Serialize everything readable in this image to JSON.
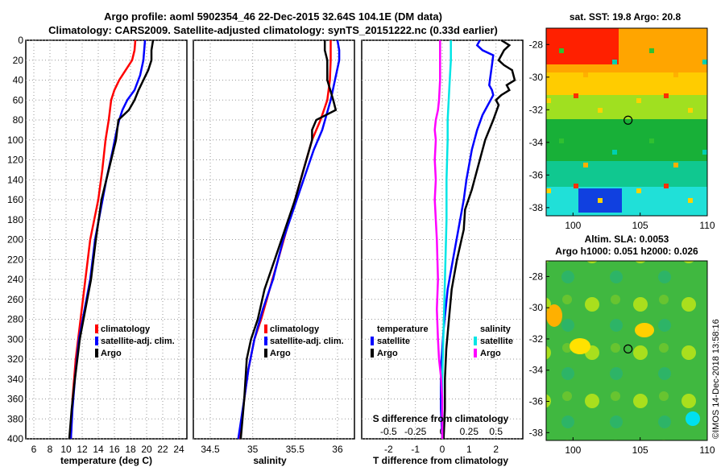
{
  "title_line1": "Argo profile: aoml 5902354_46 22-Dec-2015 32.64S 104.1E (DM data)",
  "title_line2": "Climatology: CARS2009. Satellite-adjusted climatology: synTS_20151222.nc (0.33d earlier)",
  "credit": "©IMOS 14-Dec-2018 13:58:16",
  "colors": {
    "climatology": "#ff0000",
    "satellite": "#0000ff",
    "argo": "#000000",
    "sat_salinity": "#00e5e5",
    "argo_salinity": "#ff00ff"
  },
  "chart_data": [
    {
      "type": "line",
      "id": "temperature",
      "xlabel": "temperature (deg C)",
      "ylabel": "depth (dbar)",
      "xlim": [
        5,
        25
      ],
      "ylim": [
        400,
        0
      ],
      "xticks": [
        6,
        8,
        10,
        12,
        14,
        16,
        18,
        20,
        22,
        24
      ],
      "yticks": [
        0,
        20,
        40,
        60,
        80,
        100,
        120,
        140,
        160,
        180,
        200,
        220,
        240,
        260,
        280,
        300,
        320,
        340,
        360,
        380,
        400
      ],
      "grid": true,
      "legend": [
        "climatology",
        "satellite-adj. clim.",
        "Argo"
      ],
      "series": [
        {
          "name": "climatology",
          "color": "#ff0000",
          "points": [
            [
              18.6,
              0
            ],
            [
              18.5,
              10
            ],
            [
              18.2,
              20
            ],
            [
              17.4,
              30
            ],
            [
              16.6,
              40
            ],
            [
              16.0,
              50
            ],
            [
              15.6,
              60
            ],
            [
              15.3,
              80
            ],
            [
              14.9,
              100
            ],
            [
              14.5,
              130
            ],
            [
              14.0,
              160
            ],
            [
              13.5,
              180
            ],
            [
              13.0,
              200
            ],
            [
              12.4,
              240
            ],
            [
              11.8,
              280
            ],
            [
              11.2,
              320
            ],
            [
              10.8,
              360
            ],
            [
              10.6,
              400
            ]
          ]
        },
        {
          "name": "satellite-adj. clim.",
          "color": "#0000ff",
          "points": [
            [
              19.8,
              0
            ],
            [
              19.7,
              10
            ],
            [
              19.6,
              20
            ],
            [
              19.2,
              35
            ],
            [
              18.5,
              50
            ],
            [
              17.6,
              60
            ],
            [
              17.0,
              70
            ],
            [
              16.6,
              80
            ],
            [
              16.3,
              90
            ],
            [
              15.8,
              110
            ],
            [
              15.0,
              140
            ],
            [
              14.3,
              170
            ],
            [
              13.6,
              200
            ],
            [
              13.0,
              240
            ],
            [
              12.3,
              270
            ],
            [
              11.6,
              300
            ],
            [
              11.1,
              340
            ],
            [
              10.8,
              370
            ],
            [
              10.6,
              400
            ]
          ]
        },
        {
          "name": "Argo",
          "color": "#000000",
          "points": [
            [
              20.8,
              0
            ],
            [
              20.6,
              10
            ],
            [
              20.6,
              20
            ],
            [
              20.2,
              30
            ],
            [
              19.6,
              40
            ],
            [
              19.0,
              50
            ],
            [
              18.5,
              60
            ],
            [
              17.8,
              70
            ],
            [
              16.5,
              80
            ],
            [
              16.2,
              100
            ],
            [
              15.3,
              130
            ],
            [
              14.4,
              160
            ],
            [
              13.7,
              200
            ],
            [
              13.1,
              240
            ],
            [
              12.4,
              270
            ],
            [
              11.7,
              300
            ],
            [
              11.1,
              340
            ],
            [
              10.7,
              370
            ],
            [
              10.4,
              400
            ]
          ]
        }
      ]
    },
    {
      "type": "line",
      "id": "salinity",
      "xlabel": "salinity",
      "ylabel": "depth (dbar)",
      "xlim": [
        34.3,
        36.2
      ],
      "ylim": [
        400,
        0
      ],
      "xticks": [
        34.5,
        35,
        35.5,
        36
      ],
      "xtick_labels": [
        "34.5",
        "35",
        "35.5",
        "36"
      ],
      "grid": true,
      "legend": [
        "climatology",
        "satellite-adj. clim.",
        "Argo"
      ],
      "series": [
        {
          "name": "climatology",
          "color": "#ff0000",
          "points": [
            [
              35.92,
              0
            ],
            [
              35.92,
              20
            ],
            [
              35.91,
              40
            ],
            [
              35.88,
              60
            ],
            [
              35.8,
              80
            ],
            [
              35.7,
              100
            ],
            [
              35.6,
              130
            ],
            [
              35.5,
              160
            ],
            [
              35.4,
              190
            ],
            [
              35.3,
              220
            ],
            [
              35.2,
              250
            ],
            [
              35.1,
              280
            ],
            [
              35.02,
              300
            ],
            [
              34.95,
              330
            ],
            [
              34.9,
              360
            ],
            [
              34.85,
              400
            ]
          ]
        },
        {
          "name": "satellite-adj. clim.",
          "color": "#0000ff",
          "points": [
            [
              36.0,
              0
            ],
            [
              36.02,
              10
            ],
            [
              36.02,
              20
            ],
            [
              35.97,
              40
            ],
            [
              35.92,
              60
            ],
            [
              35.82,
              90
            ],
            [
              35.72,
              110
            ],
            [
              35.6,
              140
            ],
            [
              35.48,
              170
            ],
            [
              35.36,
              200
            ],
            [
              35.24,
              240
            ],
            [
              35.12,
              270
            ],
            [
              35.02,
              300
            ],
            [
              34.95,
              330
            ],
            [
              34.9,
              360
            ],
            [
              34.83,
              400
            ]
          ]
        },
        {
          "name": "Argo",
          "color": "#000000",
          "points": [
            [
              35.85,
              0
            ],
            [
              35.85,
              10
            ],
            [
              35.88,
              20
            ],
            [
              35.88,
              40
            ],
            [
              35.95,
              60
            ],
            [
              35.98,
              70
            ],
            [
              35.75,
              80
            ],
            [
              35.7,
              90
            ],
            [
              35.7,
              100
            ],
            [
              35.6,
              130
            ],
            [
              35.5,
              160
            ],
            [
              35.38,
              190
            ],
            [
              35.26,
              220
            ],
            [
              35.14,
              250
            ],
            [
              35.06,
              280
            ],
            [
              34.98,
              300
            ],
            [
              34.93,
              320
            ],
            [
              34.9,
              360
            ],
            [
              34.86,
              400
            ]
          ]
        }
      ]
    },
    {
      "type": "line",
      "id": "difference",
      "xlabel": "T difference from climatology",
      "xlabel_top": "S difference from climatology",
      "xlim": [
        -3,
        3
      ],
      "xticks": [
        -2,
        -1,
        0,
        1,
        2
      ],
      "xtick_labels": [
        "-2",
        "-1",
        "0",
        "1",
        "2"
      ],
      "s_xticks": [
        -0.5,
        -0.25,
        0,
        0.25,
        0.5
      ],
      "s_xtick_labels": [
        "-0.5",
        "-0.25",
        "0",
        "0.25",
        "0.5"
      ],
      "ylim": [
        400,
        0
      ],
      "grid": true,
      "legend_temperature_title": "temperature",
      "legend_salinity_title": "salinity",
      "legend_temperature": [
        "satellite",
        "Argo"
      ],
      "legend_salinity": [
        "satellite",
        "Argo"
      ],
      "series": [
        {
          "name": "T satellite",
          "color": "#0000ff",
          "points": [
            [
              1.4,
              0
            ],
            [
              1.3,
              5
            ],
            [
              1.5,
              10
            ],
            [
              1.9,
              15
            ],
            [
              1.85,
              25
            ],
            [
              1.8,
              35
            ],
            [
              1.75,
              45
            ],
            [
              1.85,
              50
            ],
            [
              1.9,
              55
            ],
            [
              1.7,
              65
            ],
            [
              1.5,
              75
            ],
            [
              1.3,
              90
            ],
            [
              1.1,
              110
            ],
            [
              0.9,
              140
            ],
            [
              0.8,
              160
            ],
            [
              0.6,
              190
            ],
            [
              0.4,
              220
            ],
            [
              0.2,
              250
            ],
            [
              0.05,
              290
            ],
            [
              -0.05,
              330
            ],
            [
              -0.05,
              370
            ],
            [
              0.0,
              400
            ]
          ]
        },
        {
          "name": "T Argo",
          "color": "#000000",
          "points": [
            [
              2.2,
              0
            ],
            [
              2.5,
              5
            ],
            [
              2.3,
              10
            ],
            [
              2.1,
              20
            ],
            [
              2.3,
              25
            ],
            [
              2.6,
              30
            ],
            [
              2.7,
              40
            ],
            [
              2.4,
              45
            ],
            [
              2.5,
              50
            ],
            [
              2.2,
              55
            ],
            [
              2.0,
              60
            ],
            [
              2.1,
              65
            ],
            [
              1.9,
              80
            ],
            [
              1.6,
              100
            ],
            [
              1.3,
              130
            ],
            [
              1.1,
              150
            ],
            [
              0.85,
              170
            ],
            [
              0.8,
              190
            ],
            [
              0.55,
              220
            ],
            [
              0.35,
              250
            ],
            [
              0.25,
              280
            ],
            [
              0.15,
              310
            ],
            [
              0.1,
              340
            ],
            [
              0.1,
              370
            ],
            [
              0.05,
              400
            ]
          ]
        },
        {
          "name": "S satellite",
          "color": "#00e5e5",
          "points": [
            [
              0.08,
              0
            ],
            [
              0.08,
              20
            ],
            [
              0.07,
              40
            ],
            [
              0.06,
              60
            ],
            [
              0.05,
              80
            ],
            [
              0.05,
              100
            ],
            [
              0.04,
              140
            ],
            [
              0.04,
              180
            ],
            [
              0.03,
              220
            ],
            [
              0.02,
              260
            ],
            [
              0.01,
              300
            ],
            [
              0.0,
              340
            ],
            [
              0.0,
              380
            ],
            [
              0.0,
              400
            ]
          ]
        },
        {
          "name": "S Argo",
          "color": "#ff00ff",
          "points": [
            [
              -0.02,
              0
            ],
            [
              -0.02,
              20
            ],
            [
              -0.02,
              40
            ],
            [
              -0.03,
              60
            ],
            [
              -0.04,
              70
            ],
            [
              -0.06,
              80
            ],
            [
              -0.07,
              90
            ],
            [
              -0.06,
              100
            ],
            [
              -0.07,
              120
            ],
            [
              -0.06,
              140
            ],
            [
              -0.07,
              160
            ],
            [
              -0.06,
              180
            ],
            [
              -0.05,
              200
            ],
            [
              -0.04,
              240
            ],
            [
              -0.05,
              270
            ],
            [
              -0.04,
              300
            ],
            [
              -0.03,
              320
            ],
            [
              -0.01,
              340
            ],
            [
              0.0,
              360
            ],
            [
              0.0,
              400
            ]
          ]
        }
      ]
    },
    {
      "type": "heatmap",
      "id": "sst_map",
      "title": "sat. SST: 19.8 Argo: 20.8",
      "xlim": [
        98,
        110
      ],
      "ylim": [
        -38.5,
        -27
      ],
      "xticks": [
        100,
        105,
        110
      ],
      "yticks": [
        -28,
        -30,
        -32,
        -34,
        -36,
        -38
      ],
      "marker": {
        "lon": 104.1,
        "lat": -32.64
      }
    },
    {
      "type": "heatmap",
      "id": "sla_map",
      "title": "Altim. SLA: 0.0053",
      "subtitle": "Argo h1000: 0.051 h2000: 0.026",
      "xlim": [
        98,
        110
      ],
      "ylim": [
        -38.5,
        -27
      ],
      "xticks": [
        100,
        105,
        110
      ],
      "yticks": [
        -28,
        -30,
        -32,
        -34,
        -36,
        -38
      ],
      "marker": {
        "lon": 104.1,
        "lat": -32.64
      }
    }
  ]
}
